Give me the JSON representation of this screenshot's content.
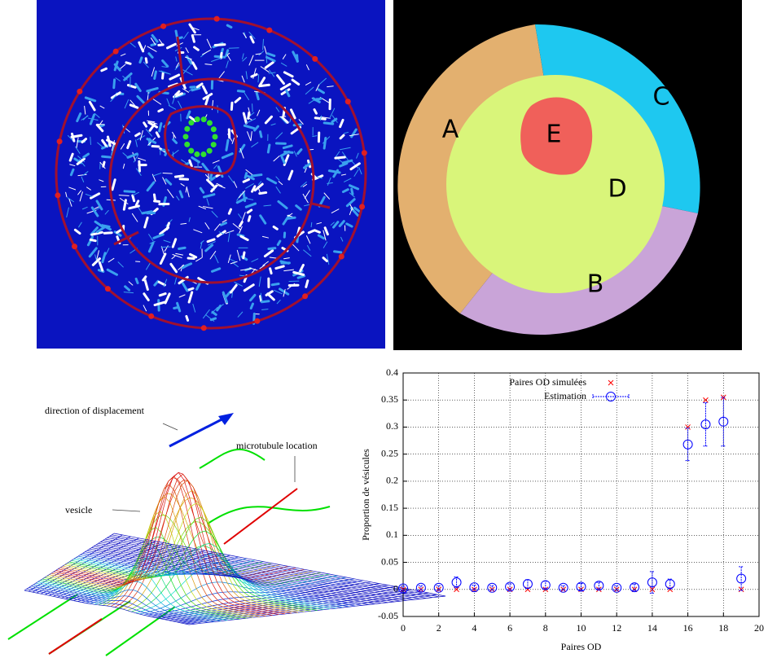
{
  "segmentation_labels": [
    "A",
    "B",
    "C",
    "D",
    "E"
  ],
  "surface_annotations": {
    "direction": "direction of displacement",
    "microtubule": "microtubule location",
    "vesicle": "vesicle"
  },
  "chart_data": {
    "type": "scatter",
    "x_label": "Paires OD",
    "y_label": "Proportion de vésicules",
    "x": [
      0,
      1,
      2,
      3,
      4,
      5,
      6,
      7,
      8,
      9,
      10,
      11,
      12,
      13,
      14,
      15,
      16,
      17,
      18,
      19
    ],
    "series": [
      {
        "name": "Paires OD simulées",
        "color": "#ff0000",
        "marker": "x",
        "values": [
          0,
          0,
          0,
          0,
          0,
          0,
          0,
          0,
          0,
          0,
          0,
          0,
          0,
          0,
          0,
          0,
          0.3,
          0.35,
          0.355,
          0
        ]
      },
      {
        "name": "Estimation",
        "color": "#0000ff",
        "marker": "circle",
        "values": [
          0.002,
          0.003,
          0.003,
          0.013,
          0.004,
          0.003,
          0.005,
          0.01,
          0.008,
          0.003,
          0.005,
          0.007,
          0.003,
          0.004,
          0.013,
          0.01,
          0.268,
          0.305,
          0.31,
          0.02
        ],
        "errors": [
          0.004,
          0.004,
          0.004,
          0.01,
          0.004,
          0.004,
          0.005,
          0.008,
          0.007,
          0.004,
          0.006,
          0.006,
          0.004,
          0.006,
          0.02,
          0.009,
          0.03,
          0.04,
          0.045,
          0.022
        ]
      }
    ],
    "xlim": [
      0,
      20
    ],
    "xticks": [
      0,
      2,
      4,
      6,
      8,
      10,
      12,
      14,
      16,
      18,
      20
    ],
    "ylim": [
      -0.05,
      0.4
    ],
    "yticks": [
      -0.05,
      0,
      0.05,
      0.1,
      0.15,
      0.2,
      0.25,
      0.3,
      0.35,
      0.4
    ],
    "grid": true,
    "legend": "top-left"
  }
}
